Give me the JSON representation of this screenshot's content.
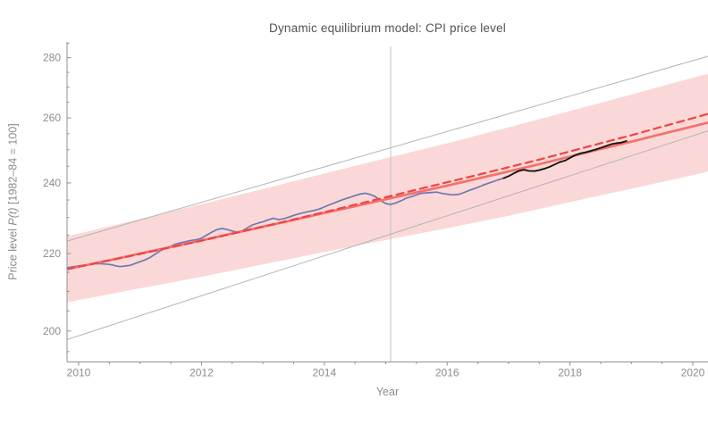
{
  "title": "Dynamic equilibrium model: CPI price level",
  "axes": {
    "x_label": "Year",
    "y_label_prefix": "Price level ",
    "y_label_math": "P(t)",
    "y_label_suffix": " [1982–84 = 100]"
  },
  "colors": {
    "band": "#fbd8d8",
    "model_solid": "#f4716c",
    "model_dashed": "#ec4545",
    "data_blue": "#6e78af",
    "data_black": "#151515",
    "gray_line": "#b4b4b4",
    "vertical_line": "#c2c2c2",
    "axis": "#8f8f8f",
    "tick_label": "#8c8c8c"
  },
  "chart_data": {
    "type": "line",
    "title": "Dynamic equilibrium model: CPI price level",
    "xlabel": "Year",
    "ylabel": "Price level P(t) [1982-84 = 100]",
    "x_range": [
      2009.81,
      2020.25
    ],
    "y_range": [
      192,
      285
    ],
    "y_scale": "log",
    "grid": false,
    "legend": "none",
    "x_ticks_major": [
      2010,
      2012,
      2014,
      2016,
      2018,
      2020
    ],
    "x_ticks_minor": [
      2010.5,
      2011,
      2011.5,
      2012.5,
      2013,
      2013.5,
      2014.5,
      2015,
      2015.5,
      2016.5,
      2017,
      2017.5,
      2018.5,
      2019,
      2019.5
    ],
    "y_ticks_major": [
      200,
      220,
      240,
      260,
      280
    ],
    "y_ticks_minor": [
      195,
      205,
      210,
      215,
      225,
      230,
      235,
      245,
      250,
      255,
      265,
      270,
      275,
      285
    ],
    "vertical_line_x": 2015.08,
    "band": {
      "x": [
        2009.81,
        2011,
        2012,
        2013,
        2014,
        2015,
        2016,
        2017,
        2018,
        2019,
        2020,
        2020.25
      ],
      "top": [
        224.7,
        229.6,
        233.8,
        238.2,
        242.8,
        247.4,
        252.0,
        257.0,
        262.2,
        267.6,
        273.2,
        274.6
      ],
      "bottom": [
        207.2,
        210.8,
        213.8,
        217.1,
        220.4,
        223.7,
        227.0,
        230.5,
        234.4,
        238.3,
        242.3,
        243.4
      ]
    },
    "series": [
      {
        "name": "equilibrium-line-upper-gray",
        "role": "reference",
        "width": 1,
        "x": [
          2009.81,
          2020.25
        ],
        "y": [
          223.4,
          280.5
        ]
      },
      {
        "name": "equilibrium-line-lower-gray",
        "role": "reference",
        "width": 1,
        "x": [
          2009.81,
          2020.25
        ],
        "y": [
          197.9,
          255.9
        ]
      },
      {
        "name": "cpi-data-blue",
        "role": "data",
        "width": 1.7,
        "x": [
          2009.81,
          2010.0,
          2010.17,
          2010.33,
          2010.5,
          2010.67,
          2010.83,
          2011.0,
          2011.08,
          2011.17,
          2011.25,
          2011.33,
          2011.42,
          2011.5,
          2011.58,
          2011.67,
          2011.75,
          2011.83,
          2011.92,
          2012.0,
          2012.08,
          2012.17,
          2012.25,
          2012.33,
          2012.42,
          2012.5,
          2012.58,
          2012.67,
          2012.75,
          2012.83,
          2012.92,
          2013.0,
          2013.08,
          2013.17,
          2013.25,
          2013.33,
          2013.42,
          2013.5,
          2013.58,
          2013.67,
          2013.75,
          2013.83,
          2013.92,
          2014.0,
          2014.08,
          2014.17,
          2014.25,
          2014.33,
          2014.42,
          2014.5,
          2014.58,
          2014.67,
          2014.75,
          2014.83,
          2014.92,
          2015.0,
          2015.08,
          2015.17,
          2015.25,
          2015.33,
          2015.42,
          2015.5,
          2015.58,
          2015.67,
          2015.75,
          2015.83,
          2015.92,
          2016.0,
          2016.08,
          2016.17,
          2016.25,
          2016.33,
          2016.42,
          2016.5,
          2016.58,
          2016.67,
          2016.75,
          2016.83,
          2016.92
        ],
        "y": [
          216.2,
          216.7,
          217.1,
          217.3,
          217.1,
          216.5,
          216.8,
          217.8,
          218.3,
          219.0,
          219.9,
          220.8,
          221.5,
          222.0,
          222.6,
          223.0,
          223.3,
          223.6,
          223.8,
          224.2,
          225.0,
          225.9,
          226.6,
          226.9,
          226.6,
          226.2,
          225.9,
          226.3,
          227.1,
          227.9,
          228.4,
          228.8,
          229.3,
          229.8,
          229.4,
          229.6,
          230.1,
          230.6,
          231.0,
          231.4,
          231.7,
          232.0,
          232.4,
          233.0,
          233.6,
          234.2,
          234.8,
          235.3,
          235.8,
          236.3,
          236.7,
          237.0,
          236.6,
          236.0,
          234.8,
          234.0,
          233.7,
          234.2,
          234.8,
          235.5,
          236.0,
          236.5,
          236.9,
          237.1,
          237.2,
          237.3,
          236.9,
          236.7,
          236.5,
          236.6,
          237.0,
          237.6,
          238.2,
          238.7,
          239.3,
          239.9,
          240.4,
          240.9,
          241.4
        ]
      },
      {
        "name": "model-trend-solid",
        "role": "model",
        "width": 2.7,
        "x": [
          2009.81,
          2010.5,
          2011,
          2011.5,
          2012,
          2012.5,
          2013,
          2013.5,
          2014,
          2014.5,
          2015,
          2015.5,
          2016,
          2016.5,
          2017,
          2017.5,
          2018,
          2018.5,
          2019,
          2019.5,
          2020,
          2020.25
        ],
        "y": [
          215.8,
          218.2,
          220.0,
          221.8,
          223.6,
          225.5,
          227.4,
          229.3,
          231.3,
          233.2,
          235.2,
          237.2,
          239.2,
          241.3,
          243.4,
          245.6,
          247.9,
          250.2,
          252.5,
          254.9,
          257.3,
          258.5
        ]
      },
      {
        "name": "model-forecast-dashed",
        "role": "model",
        "width": 2.2,
        "dash": "8 5.5",
        "x": [
          2009.81,
          2011,
          2012,
          2013,
          2014,
          2015,
          2015.5,
          2016,
          2016.5,
          2017,
          2017.5,
          2018,
          2018.5,
          2019,
          2019.5,
          2020,
          2020.25
        ],
        "y": [
          215.8,
          219.9,
          223.5,
          227.4,
          231.5,
          235.8,
          238.0,
          240.2,
          242.4,
          244.7,
          247.0,
          249.5,
          252.0,
          254.5,
          257.2,
          259.9,
          261.3
        ]
      },
      {
        "name": "cpi-data-black",
        "role": "data",
        "width": 1.9,
        "x": [
          2016.92,
          2017.0,
          2017.08,
          2017.17,
          2017.25,
          2017.33,
          2017.42,
          2017.5,
          2017.58,
          2017.67,
          2017.75,
          2017.83,
          2017.92,
          2018.0,
          2018.08,
          2018.17,
          2018.25,
          2018.33,
          2018.42,
          2018.5,
          2018.58,
          2018.67,
          2018.75,
          2018.83,
          2018.92
        ],
        "y": [
          241.4,
          242.0,
          242.8,
          243.6,
          243.9,
          243.6,
          243.5,
          243.8,
          244.2,
          244.8,
          245.5,
          246.2,
          246.7,
          247.5,
          248.3,
          248.9,
          249.2,
          249.6,
          250.1,
          250.6,
          251.1,
          251.7,
          252.0,
          252.2,
          252.7
        ]
      }
    ]
  }
}
